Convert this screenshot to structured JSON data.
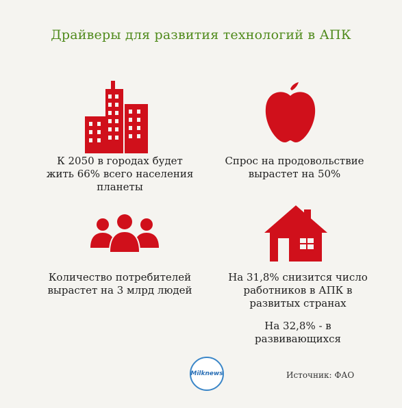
{
  "title": "Драйверы для развития технологий в АПК",
  "items": [
    {
      "icon": "city-buildings-icon",
      "text_lines": [
        "К 2050 в городах будет",
        "жить 66% всего населения",
        "планеты"
      ]
    },
    {
      "icon": "apple-icon",
      "text_lines": [
        "Спрос на продовольствие",
        "вырастет на 50%"
      ]
    },
    {
      "icon": "people-group-icon",
      "text_lines": [
        "Количество потребителей",
        "вырастет на 3 млрд людей"
      ]
    },
    {
      "icon": "house-icon",
      "text_lines": [
        "На 31,8% снизится число",
        "работников в АПК в",
        "развитых странах"
      ],
      "extra_lines": [
        "На 32,8% - в",
        "развивающихся"
      ]
    }
  ],
  "logo_text": "Milknews",
  "source": "Источник: ФАО",
  "colors": {
    "icon_red": "#d0101b",
    "title_green": "#4f8a1b",
    "logo_blue": "#3a86c8"
  }
}
